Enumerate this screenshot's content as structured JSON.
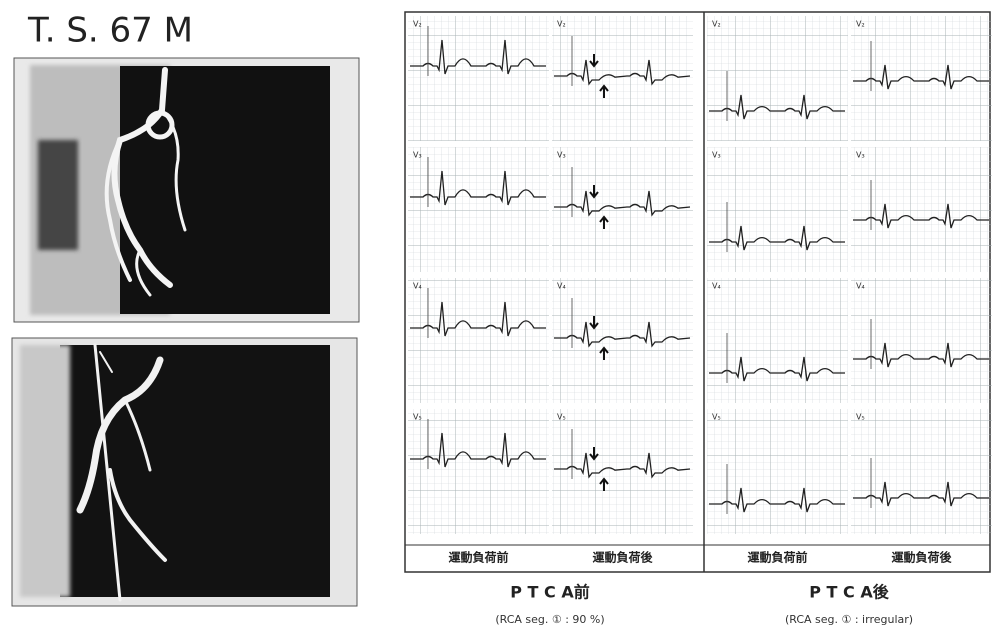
{
  "patient_label": "T. S. 67 M",
  "leads": [
    "V₂",
    "V₃",
    "V₄",
    "V₅"
  ],
  "panels": [
    {
      "columns": [
        "運動負荷前",
        "運動負荷後"
      ],
      "title": "P T C A前",
      "subtitle": "(RCA seg. ① : 90 %)"
    },
    {
      "columns": [
        "運動負荷前",
        "運動負荷後"
      ],
      "title": "P T C A後",
      "subtitle": "(RCA seg. ① : irregular)"
    }
  ]
}
